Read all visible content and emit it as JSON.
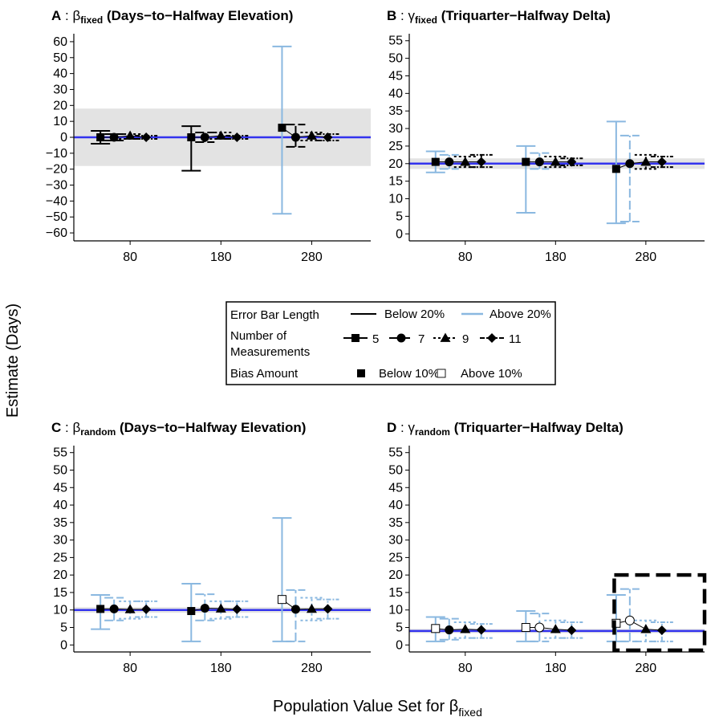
{
  "figure": {
    "ylabel": "Estimate (Days)",
    "xlabel_main": "Population Value Set for β",
    "xlabel_sub": "fixed"
  },
  "legend": {
    "row1_title": "Error Bar Length",
    "row1_items": [
      "Below 20%",
      "Above 20%"
    ],
    "row2_title_1": "Number of",
    "row2_title_2": "Measurements",
    "row2_items": [
      "5",
      "7",
      "9",
      "11"
    ],
    "row3_title": "Bias Amount",
    "row3_items": [
      "Below 10%",
      "Above 10%"
    ]
  },
  "colors": {
    "below20": "#000000",
    "above20": "#8ab8e0",
    "reference_line": "#3333ee",
    "band": "#e3e3e3"
  },
  "chart_data": [
    {
      "type": "scatter",
      "panel_letter": "A",
      "greek": "β",
      "sub": "fixed",
      "title": "(Days−to−Halfway Elevation)",
      "x_ticks": [
        80,
        180,
        280
      ],
      "ylim": [
        -65,
        65
      ],
      "y_ticks": [
        -60,
        -50,
        -40,
        -30,
        -20,
        -10,
        0,
        10,
        20,
        30,
        40,
        50,
        60
      ],
      "reference": 0,
      "band": [
        -18,
        18
      ],
      "groups": [
        {
          "x": 80,
          "points": [
            {
              "n": 5,
              "est": 0,
              "lo": -4,
              "hi": 4,
              "wide": false,
              "biased": false
            },
            {
              "n": 7,
              "est": 0,
              "lo": -2,
              "hi": 2,
              "wide": false,
              "biased": false
            },
            {
              "n": 9,
              "est": 1,
              "lo": -1,
              "hi": 2,
              "wide": false,
              "biased": false
            },
            {
              "n": 11,
              "est": 0,
              "lo": -1,
              "hi": 1,
              "wide": false,
              "biased": false
            }
          ]
        },
        {
          "x": 180,
          "points": [
            {
              "n": 5,
              "est": 0,
              "lo": -21,
              "hi": 7,
              "wide": false,
              "biased": false
            },
            {
              "n": 7,
              "est": 0,
              "lo": -3,
              "hi": 3,
              "wide": false,
              "biased": false
            },
            {
              "n": 9,
              "est": 1,
              "lo": -1,
              "hi": 3,
              "wide": false,
              "biased": false
            },
            {
              "n": 11,
              "est": 0,
              "lo": -1,
              "hi": 1,
              "wide": false,
              "biased": false
            }
          ]
        },
        {
          "x": 280,
          "points": [
            {
              "n": 5,
              "est": 6,
              "lo": -48,
              "hi": 57,
              "wide": true,
              "biased": false
            },
            {
              "n": 7,
              "est": 0,
              "lo": -6,
              "hi": 8,
              "wide": false,
              "biased": false
            },
            {
              "n": 9,
              "est": 1,
              "lo": -2,
              "hi": 3,
              "wide": false,
              "biased": false
            },
            {
              "n": 11,
              "est": 0,
              "lo": -2,
              "hi": 2,
              "wide": false,
              "biased": false
            }
          ]
        }
      ]
    },
    {
      "type": "scatter",
      "panel_letter": "B",
      "greek": "γ",
      "sub": "fixed",
      "title": "(Triquarter−Halfway Delta)",
      "x_ticks": [
        80,
        180,
        280
      ],
      "ylim": [
        -2,
        57
      ],
      "y_ticks": [
        0,
        5,
        10,
        15,
        20,
        25,
        30,
        35,
        40,
        45,
        50,
        55
      ],
      "reference": 20,
      "band": [
        18.5,
        21.5
      ],
      "groups": [
        {
          "x": 80,
          "points": [
            {
              "n": 5,
              "est": 20.5,
              "lo": 17.5,
              "hi": 23.5,
              "wide": true,
              "biased": false
            },
            {
              "n": 7,
              "est": 20.5,
              "lo": 18.5,
              "hi": 22.5,
              "wide": true,
              "biased": false
            },
            {
              "n": 9,
              "est": 20.5,
              "lo": 19,
              "hi": 22,
              "wide": false,
              "biased": false
            },
            {
              "n": 11,
              "est": 20.5,
              "lo": 19,
              "hi": 22.5,
              "wide": false,
              "biased": false
            }
          ]
        },
        {
          "x": 180,
          "points": [
            {
              "n": 5,
              "est": 20.5,
              "lo": 6,
              "hi": 25,
              "wide": true,
              "biased": false
            },
            {
              "n": 7,
              "est": 20.5,
              "lo": 18.5,
              "hi": 23,
              "wide": true,
              "biased": false
            },
            {
              "n": 9,
              "est": 20.5,
              "lo": 19,
              "hi": 22,
              "wide": false,
              "biased": false
            },
            {
              "n": 11,
              "est": 20.5,
              "lo": 19.5,
              "hi": 21.5,
              "wide": false,
              "biased": false
            }
          ]
        },
        {
          "x": 280,
          "points": [
            {
              "n": 5,
              "est": 18.5,
              "lo": 3,
              "hi": 32,
              "wide": true,
              "biased": false
            },
            {
              "n": 7,
              "est": 20,
              "lo": 3.5,
              "hi": 28,
              "wide": true,
              "biased": false
            },
            {
              "n": 9,
              "est": 20.5,
              "lo": 18.5,
              "hi": 22.5,
              "wide": false,
              "biased": false
            },
            {
              "n": 11,
              "est": 20.5,
              "lo": 19,
              "hi": 22,
              "wide": false,
              "biased": false
            }
          ]
        }
      ]
    },
    {
      "type": "scatter",
      "panel_letter": "C",
      "greek": "β",
      "sub": "random",
      "title": "(Days−to−Halfway Elevation)",
      "x_ticks": [
        80,
        180,
        280
      ],
      "ylim": [
        -2,
        57
      ],
      "y_ticks": [
        0,
        5,
        10,
        15,
        20,
        25,
        30,
        35,
        40,
        45,
        50,
        55
      ],
      "reference": 10,
      "band": [
        9.2,
        10.8
      ],
      "groups": [
        {
          "x": 80,
          "points": [
            {
              "n": 5,
              "est": 10.3,
              "lo": 4.5,
              "hi": 14.3,
              "wide": true,
              "biased": false
            },
            {
              "n": 7,
              "est": 10.3,
              "lo": 7,
              "hi": 13.5,
              "wide": true,
              "biased": false
            },
            {
              "n": 9,
              "est": 10.2,
              "lo": 7.5,
              "hi": 12.5,
              "wide": true,
              "biased": false
            },
            {
              "n": 11,
              "est": 10.2,
              "lo": 8,
              "hi": 12.5,
              "wide": true,
              "biased": false
            }
          ]
        },
        {
          "x": 180,
          "points": [
            {
              "n": 5,
              "est": 9.7,
              "lo": 1,
              "hi": 17.5,
              "wide": true,
              "biased": false
            },
            {
              "n": 7,
              "est": 10.5,
              "lo": 7,
              "hi": 14.5,
              "wide": true,
              "biased": false
            },
            {
              "n": 9,
              "est": 10.4,
              "lo": 7.5,
              "hi": 12.5,
              "wide": true,
              "biased": false
            },
            {
              "n": 11,
              "est": 10.2,
              "lo": 8,
              "hi": 12.5,
              "wide": true,
              "biased": false
            }
          ]
        },
        {
          "x": 280,
          "points": [
            {
              "n": 5,
              "est": 13,
              "lo": 1,
              "hi": 36.3,
              "wide": true,
              "biased": true
            },
            {
              "n": 7,
              "est": 10.2,
              "lo": 1,
              "hi": 15.7,
              "wide": true,
              "biased": false
            },
            {
              "n": 9,
              "est": 10.3,
              "lo": 7,
              "hi": 13.5,
              "wide": true,
              "biased": false
            },
            {
              "n": 11,
              "est": 10.3,
              "lo": 7.5,
              "hi": 13,
              "wide": true,
              "biased": false
            }
          ]
        }
      ]
    },
    {
      "type": "scatter",
      "panel_letter": "D",
      "greek": "γ",
      "sub": "random",
      "title": "(Triquarter−Halfway Delta)",
      "x_ticks": [
        80,
        180,
        280
      ],
      "ylim": [
        -2,
        57
      ],
      "y_ticks": [
        0,
        5,
        10,
        15,
        20,
        25,
        30,
        35,
        40,
        45,
        50,
        55
      ],
      "reference": 4,
      "band": [
        3.4,
        4.6
      ],
      "groups": [
        {
          "x": 80,
          "points": [
            {
              "n": 5,
              "est": 4.7,
              "lo": 1,
              "hi": 8,
              "wide": true,
              "biased": true
            },
            {
              "n": 7,
              "est": 4.3,
              "lo": 1.5,
              "hi": 7.5,
              "wide": true,
              "biased": false
            },
            {
              "n": 9,
              "est": 4.5,
              "lo": 2,
              "hi": 6.5,
              "wide": true,
              "biased": false
            },
            {
              "n": 11,
              "est": 4.3,
              "lo": 2,
              "hi": 6,
              "wide": true,
              "biased": false
            }
          ]
        },
        {
          "x": 180,
          "points": [
            {
              "n": 5,
              "est": 5,
              "lo": 1,
              "hi": 9.7,
              "wide": true,
              "biased": true
            },
            {
              "n": 7,
              "est": 5,
              "lo": 1,
              "hi": 9,
              "wide": true,
              "biased": true
            },
            {
              "n": 9,
              "est": 4.5,
              "lo": 2,
              "hi": 7,
              "wide": true,
              "biased": false
            },
            {
              "n": 11,
              "est": 4.2,
              "lo": 2,
              "hi": 6.5,
              "wide": true,
              "biased": false
            }
          ]
        },
        {
          "x": 280,
          "points": [
            {
              "n": 5,
              "est": 6.2,
              "lo": 1,
              "hi": 14.3,
              "wide": true,
              "biased": true
            },
            {
              "n": 7,
              "est": 7,
              "lo": 1,
              "hi": 16,
              "wide": true,
              "biased": true
            },
            {
              "n": 9,
              "est": 4.5,
              "lo": 1,
              "hi": 7,
              "wide": true,
              "biased": false
            },
            {
              "n": 11,
              "est": 4.2,
              "lo": 1,
              "hi": 6.5,
              "wide": true,
              "biased": false
            }
          ]
        }
      ],
      "highlight": {
        "x_from": 245,
        "x_to": 345,
        "y_from": -1.5,
        "y_to": 20
      }
    }
  ]
}
